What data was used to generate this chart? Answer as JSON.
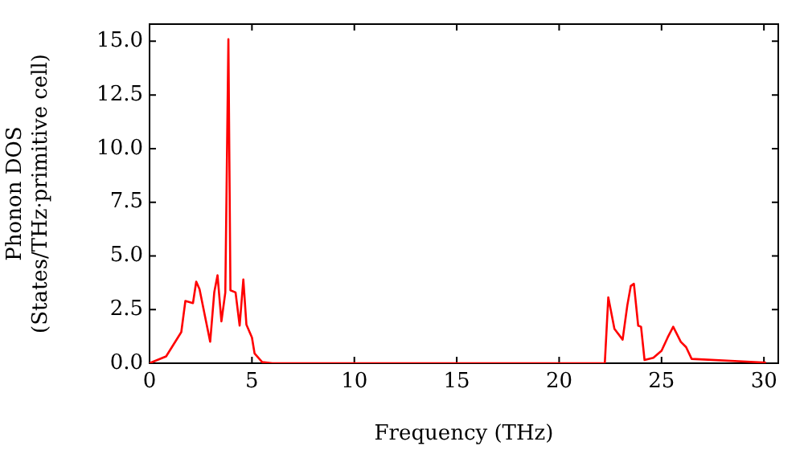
{
  "chart_data": {
    "type": "line",
    "xlabel": "Frequency (THz)",
    "ylabel": "Phonon DOS\n(States/THz·primitive cell)",
    "x": [
      0,
      0.81,
      1.55,
      1.75,
      2.12,
      2.28,
      2.44,
      2.96,
      3.16,
      3.32,
      3.51,
      3.7,
      3.85,
      3.95,
      4.2,
      4.4,
      4.58,
      4.73,
      5.0,
      5.13,
      5.5,
      6,
      22.23,
      22.4,
      22.7,
      23.1,
      23.33,
      23.5,
      23.65,
      23.86,
      24.0,
      24.17,
      24.6,
      25.0,
      25.3,
      25.57,
      25.94,
      26.2,
      26.47,
      30.1
    ],
    "series": [
      {
        "color": "#ff0000",
        "values": [
          0,
          0.32,
          1.45,
          2.9,
          2.8,
          3.8,
          3.45,
          1.0,
          3.3,
          4.1,
          1.95,
          3.3,
          15.1,
          3.4,
          3.3,
          1.75,
          3.9,
          1.8,
          1.2,
          0.45,
          0.05,
          0,
          0,
          3.07,
          1.6,
          1.1,
          2.7,
          3.6,
          3.7,
          1.75,
          1.7,
          0.15,
          0.25,
          0.58,
          1.2,
          1.7,
          1.0,
          0.75,
          0.2,
          0.03
        ]
      }
    ],
    "xlim": [
      0,
      30.7
    ],
    "xticks": [
      0,
      5,
      10,
      15,
      20,
      25,
      30
    ],
    "ylim": [
      0,
      15.8
    ],
    "yticks": [
      {
        "value": 0,
        "label": "0.0"
      },
      {
        "value": 2.5,
        "label": "2.5"
      },
      {
        "value": 5,
        "label": "5.0"
      },
      {
        "value": 7.5,
        "label": "7.5"
      },
      {
        "value": 10,
        "label": "10.0"
      },
      {
        "value": 12.5,
        "label": "12.5"
      },
      {
        "value": 15,
        "label": "15.0"
      }
    ],
    "grid": false,
    "legend": false,
    "marker": "none",
    "line_style": "solid"
  }
}
